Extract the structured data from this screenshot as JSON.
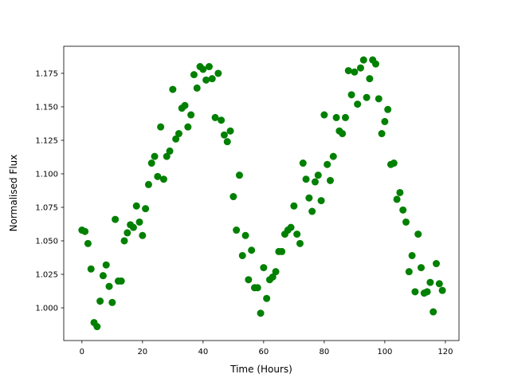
{
  "chart_data": {
    "type": "scatter",
    "title": "",
    "xlabel": "Time (Hours)",
    "ylabel": "Normalised Flux",
    "xlim": [
      -6,
      124.5
    ],
    "ylim": [
      0.9756,
      1.1952
    ],
    "xticks": [
      0,
      20,
      40,
      60,
      80,
      100,
      120
    ],
    "xtick_labels": [
      "0",
      "20",
      "40",
      "60",
      "80",
      "100",
      "120"
    ],
    "yticks": [
      1.0,
      1.025,
      1.05,
      1.075,
      1.1,
      1.125,
      1.15,
      1.175
    ],
    "ytick_labels": [
      "1.000",
      "1.025",
      "1.050",
      "1.075",
      "1.100",
      "1.125",
      "1.150",
      "1.175"
    ],
    "grid": false,
    "marker_color": "#008000",
    "x": [
      0,
      1,
      2,
      3,
      4,
      5,
      6,
      7,
      8,
      9,
      10,
      11,
      12,
      13,
      14,
      15,
      16,
      17,
      18,
      19,
      20,
      21,
      22,
      23,
      24,
      25,
      26,
      27,
      28,
      29,
      30,
      31,
      32,
      33,
      34,
      35,
      36,
      37,
      38,
      39,
      40,
      41,
      42,
      43,
      44,
      45,
      46,
      47,
      48,
      49,
      50,
      51,
      52,
      53,
      54,
      55,
      56,
      57,
      58,
      59,
      60,
      61,
      62,
      63,
      64,
      65,
      66,
      67,
      68,
      69,
      70,
      71,
      72,
      73,
      74,
      75,
      76,
      77,
      78,
      79,
      80,
      81,
      82,
      83,
      84,
      85,
      86,
      87,
      88,
      89,
      90,
      91,
      92,
      93,
      94,
      95,
      96,
      97,
      98,
      99,
      100,
      101,
      102,
      103,
      104,
      105,
      106,
      107,
      108,
      109,
      110,
      111,
      112,
      113,
      114,
      115,
      116,
      117,
      118,
      119
    ],
    "y": [
      1.058,
      1.057,
      1.048,
      1.029,
      0.989,
      0.986,
      1.005,
      1.024,
      1.032,
      1.016,
      1.004,
      1.066,
      1.02,
      1.02,
      1.05,
      1.056,
      1.062,
      1.06,
      1.076,
      1.064,
      1.054,
      1.074,
      1.092,
      1.108,
      1.113,
      1.098,
      1.135,
      1.096,
      1.113,
      1.117,
      1.163,
      1.126,
      1.13,
      1.149,
      1.151,
      1.135,
      1.144,
      1.174,
      1.164,
      1.18,
      1.178,
      1.17,
      1.18,
      1.171,
      1.142,
      1.175,
      1.14,
      1.129,
      1.124,
      1.132,
      1.083,
      1.058,
      1.099,
      1.039,
      1.054,
      1.021,
      1.043,
      1.015,
      1.015,
      0.996,
      1.03,
      1.007,
      1.021,
      1.023,
      1.027,
      1.042,
      1.042,
      1.055,
      1.058,
      1.06,
      1.076,
      1.055,
      1.048,
      1.108,
      1.096,
      1.082,
      1.072,
      1.094,
      1.099,
      1.08,
      1.144,
      1.107,
      1.095,
      1.113,
      1.142,
      1.132,
      1.13,
      1.142,
      1.177,
      1.159,
      1.176,
      1.152,
      1.179,
      1.185,
      1.157,
      1.171,
      1.185,
      1.182,
      1.156,
      1.13,
      1.139,
      1.148,
      1.107,
      1.108,
      1.081,
      1.086,
      1.073,
      1.064,
      1.027,
      1.039,
      1.012,
      1.055,
      1.03,
      1.011,
      1.012,
      1.019,
      0.997,
      1.033,
      1.018,
      1.013
    ]
  }
}
